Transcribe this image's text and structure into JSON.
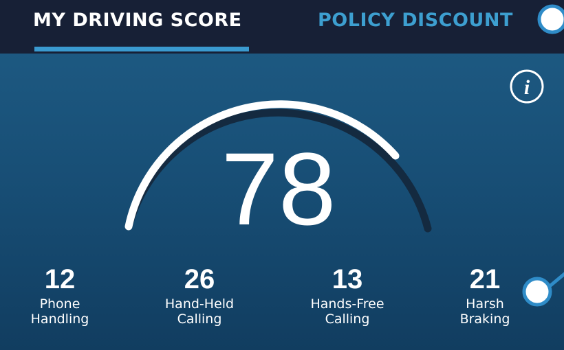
{
  "tabs": [
    "MY DRIVING SCORE",
    "POLICY DISCOUNT"
  ],
  "score": "78",
  "metrics": [
    {
      "value": "12",
      "label": [
        "Phone",
        "Handling"
      ]
    },
    {
      "value": "26",
      "label": [
        "Hand-Held",
        "Calling"
      ]
    },
    {
      "value": "13",
      "label": [
        "Hands-Free",
        "Calling"
      ]
    },
    {
      "value": "21",
      "label": [
        "Harsh",
        "Braking"
      ]
    }
  ]
}
